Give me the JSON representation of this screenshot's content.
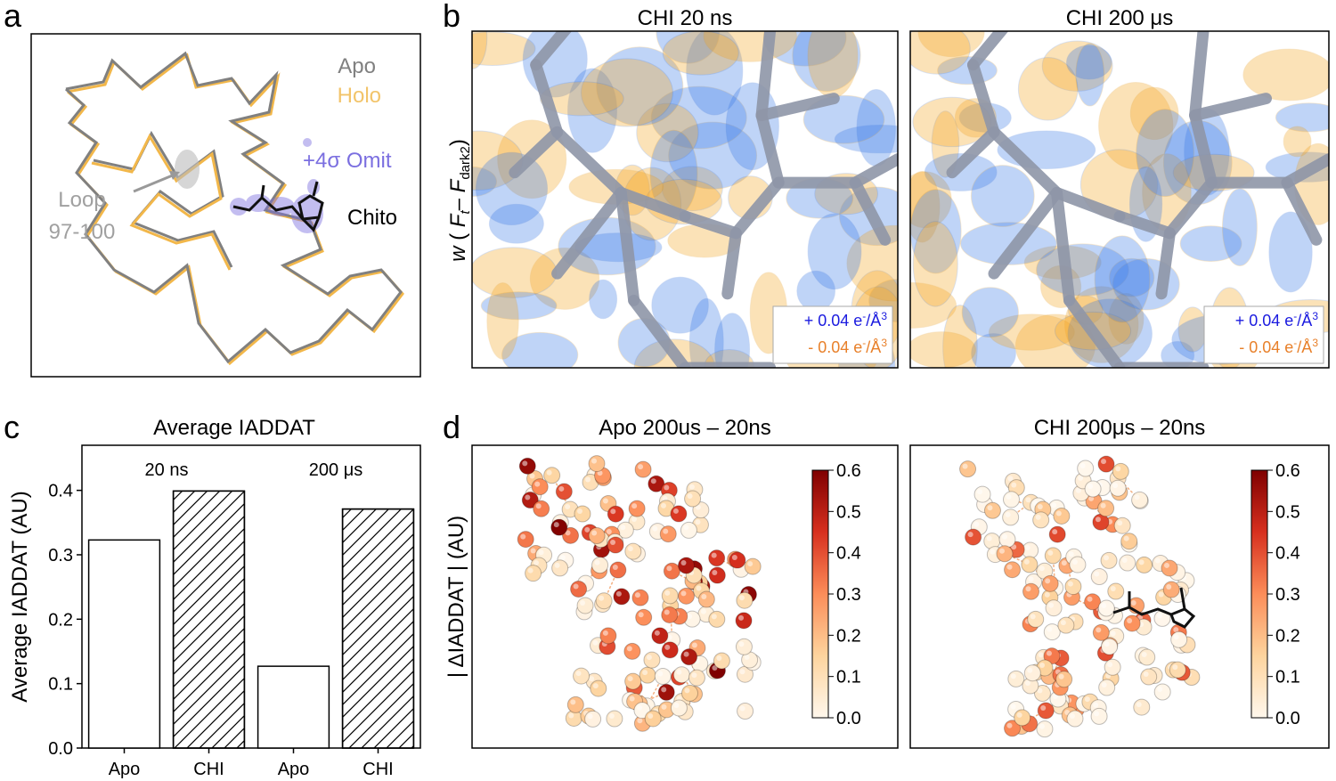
{
  "panel_labels": [
    "a",
    "b",
    "c",
    "d"
  ],
  "panel_a": {
    "apo": "Apo",
    "holo": "Holo",
    "omit": "+4σ Omit",
    "ligand": "Chito",
    "loop": [
      "Loop",
      "97-100"
    ]
  },
  "panel_b": {
    "y_label": {
      "w": "w",
      "open": "(",
      "f1": "F",
      "sub1": "t",
      "minus": "–",
      "f2": "F",
      "sub2": "dark2",
      "close": ")"
    },
    "maps": [
      {
        "title": "CHI 20 ns"
      },
      {
        "title": "CHI 200 μs"
      }
    ],
    "legend_positive": [
      "+ 0.04 e",
      "-",
      "/Å",
      "3"
    ],
    "legend_negative": [
      "- 0.04 e",
      "-",
      "/Å",
      "3"
    ]
  },
  "chart_data": {
    "type": "bar",
    "title": "Average IADDAT",
    "y_label": "Average IADDAT (AU)",
    "categories": [
      "Apo",
      "CHI",
      "Apo",
      "CHI"
    ],
    "values": [
      0.323,
      0.399,
      0.127,
      0.371
    ],
    "hatch": [
      false,
      true,
      false,
      true
    ],
    "group_labels": [
      "20 ns",
      "200 μs"
    ],
    "color": "#ffffff",
    "edge_color": "#000000",
    "ylim": [
      0,
      0.47
    ],
    "yticks": [
      {
        "value": 0,
        "label": "0.0"
      },
      0.1,
      0.2,
      0.3,
      0.4
    ]
  },
  "panel_d": {
    "y_label": "| ΔIADDAT | (AU)",
    "maps": [
      {
        "title": "Apo 200us – 20ns"
      },
      {
        "title": "CHI 200μs – 20ns"
      }
    ],
    "colorbar": {
      "lim": [
        0,
        0.6
      ],
      "ticks": [
        {
          "value": 0,
          "label": "0.0"
        },
        0.1,
        0.2,
        0.3,
        0.4,
        0.5,
        0.6
      ]
    }
  }
}
